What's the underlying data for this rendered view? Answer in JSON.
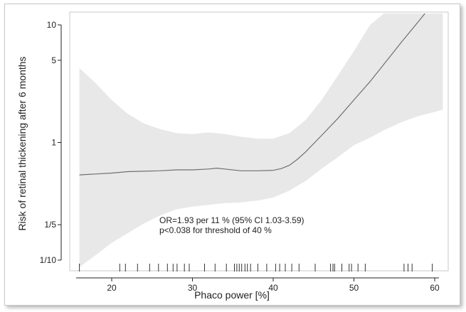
{
  "chart_data": {
    "type": "line",
    "xlabel": "Phaco power [%]",
    "ylabel": "Risk of retinal thickening after 6 months",
    "y_scale": "log",
    "xlim": [
      14.5,
      61.5
    ],
    "ylim": [
      0.087,
      13
    ],
    "x_ticks": [
      {
        "value": 20,
        "label": "20"
      },
      {
        "value": 30,
        "label": "30"
      },
      {
        "value": 40,
        "label": "40"
      },
      {
        "value": 50,
        "label": "50"
      },
      {
        "value": 60,
        "label": "60"
      }
    ],
    "y_ticks": [
      {
        "value": 10,
        "label": "10"
      },
      {
        "value": 5,
        "label": "5"
      },
      {
        "value": 1,
        "label": "1"
      },
      {
        "value": 0.2,
        "label": "1/5"
      },
      {
        "value": 0.1,
        "label": "1/10"
      }
    ],
    "grid": false,
    "legend": "none",
    "colors": {
      "line": "#707070",
      "band": "#e8e8e8",
      "axis": "#222222",
      "rug": "#333333"
    },
    "series": [
      {
        "x": [
          16,
          18,
          20,
          22,
          24,
          26,
          28,
          30,
          32,
          33,
          34,
          36,
          38,
          40,
          41,
          42,
          43,
          44,
          46,
          48,
          50,
          52,
          54,
          56,
          58,
          59
        ],
        "y": [
          0.53,
          0.54,
          0.55,
          0.565,
          0.57,
          0.575,
          0.585,
          0.585,
          0.595,
          0.605,
          0.595,
          0.575,
          0.575,
          0.58,
          0.6,
          0.64,
          0.72,
          0.83,
          1.15,
          1.6,
          2.3,
          3.3,
          4.9,
          7.3,
          10.7,
          13
        ]
      }
    ],
    "confidence_band": {
      "x": [
        16,
        18,
        20,
        22,
        24,
        26,
        28,
        30,
        32,
        34,
        36,
        38,
        40,
        42,
        44,
        46,
        48,
        50,
        52,
        54,
        56,
        58,
        60,
        61
      ],
      "lower": [
        0.087,
        0.11,
        0.14,
        0.17,
        0.205,
        0.24,
        0.27,
        0.285,
        0.295,
        0.305,
        0.31,
        0.32,
        0.34,
        0.39,
        0.47,
        0.6,
        0.75,
        0.95,
        1.1,
        1.3,
        1.5,
        1.68,
        1.82,
        1.9
      ],
      "upper": [
        4.3,
        3.2,
        2.3,
        1.75,
        1.45,
        1.3,
        1.2,
        1.18,
        1.22,
        1.18,
        1.12,
        1.08,
        1.08,
        1.2,
        1.55,
        2.3,
        3.7,
        6.0,
        10.0,
        13,
        13,
        13,
        13,
        13
      ]
    },
    "rug": [
      16,
      21,
      21.7,
      23.2,
      24.7,
      25.8,
      26.9,
      27.6,
      28.1,
      29,
      29.6,
      31.5,
      32.8,
      34.2,
      35.2,
      35.5,
      35.8,
      36.1,
      36.5,
      36.8,
      37.2,
      38.1,
      39.2,
      40.3,
      40.8,
      41.5,
      42.3,
      43.2,
      45.2,
      47.1,
      47.4,
      47.6,
      48.5,
      49.4,
      49.7,
      50.5,
      51.4,
      56.2,
      56.7,
      57.2,
      59.7
    ],
    "annotations": [
      "OR=1.93 per 11 % (95% CI 1.03-3.59)",
      "p<0.038 for threshold of 40 %"
    ]
  }
}
